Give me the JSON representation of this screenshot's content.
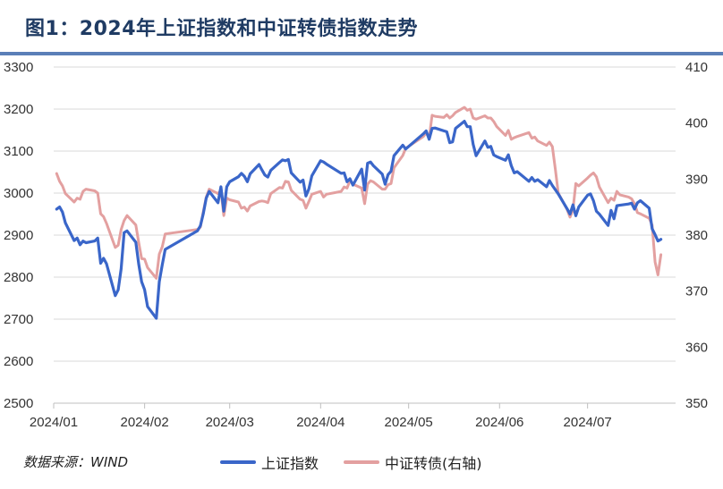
{
  "header": {
    "title": "图1：2024年上证指数和中证转债指数走势"
  },
  "footer": {
    "source": "数据来源：WIND"
  },
  "colors": {
    "primary": "#3a66c9",
    "secondary": "#e3a0a0",
    "overlap": "#6b4a86",
    "grid": "#d9d9d9"
  },
  "chart_data": {
    "type": "line",
    "title": "图1：2024年上证指数和中证转债指数走势",
    "grid": true,
    "legend": "bottom",
    "x_ticks": [
      "2024/01",
      "2024/02",
      "2024/03",
      "2024/04",
      "2024/05",
      "2024/06",
      "2024/07"
    ],
    "y_left": {
      "ticks": [
        "3300",
        "3200",
        "3100",
        "3000",
        "2900",
        "2800",
        "2700",
        "2600",
        "2500"
      ],
      "range": [
        2500,
        3300
      ]
    },
    "y_right": {
      "ticks": [
        "410",
        "400",
        "390",
        "380",
        "370",
        "360",
        "350"
      ],
      "range": [
        350,
        410
      ]
    },
    "x_range": [
      "2024-01-01",
      "2024-07-31"
    ],
    "series": [
      {
        "name": "上证指数",
        "axis": "left",
        "points": [
          [
            "2024-01-02",
            2962
          ],
          [
            "2024-01-03",
            2967
          ],
          [
            "2024-01-04",
            2955
          ],
          [
            "2024-01-05",
            2929
          ],
          [
            "2024-01-08",
            2887
          ],
          [
            "2024-01-09",
            2893
          ],
          [
            "2024-01-10",
            2877
          ],
          [
            "2024-01-11",
            2886
          ],
          [
            "2024-01-12",
            2882
          ],
          [
            "2024-01-15",
            2886
          ],
          [
            "2024-01-16",
            2893
          ],
          [
            "2024-01-17",
            2833
          ],
          [
            "2024-01-18",
            2845
          ],
          [
            "2024-01-19",
            2832
          ],
          [
            "2024-01-22",
            2756
          ],
          [
            "2024-01-23",
            2770
          ],
          [
            "2024-01-24",
            2820
          ],
          [
            "2024-01-25",
            2906
          ],
          [
            "2024-01-26",
            2910
          ],
          [
            "2024-01-29",
            2883
          ],
          [
            "2024-01-30",
            2830
          ],
          [
            "2024-01-31",
            2789
          ],
          [
            "2024-02-01",
            2770
          ],
          [
            "2024-02-02",
            2730
          ],
          [
            "2024-02-05",
            2702
          ],
          [
            "2024-02-06",
            2789
          ],
          [
            "2024-02-07",
            2829
          ],
          [
            "2024-02-08",
            2866
          ],
          [
            "2024-02-19",
            2910
          ],
          [
            "2024-02-20",
            2922
          ],
          [
            "2024-02-21",
            2951
          ],
          [
            "2024-02-22",
            2988
          ],
          [
            "2024-02-23",
            3004
          ],
          [
            "2024-02-26",
            2977
          ],
          [
            "2024-02-27",
            3015
          ],
          [
            "2024-02-28",
            2957
          ],
          [
            "2024-02-29",
            3015
          ],
          [
            "2024-03-01",
            3027
          ],
          [
            "2024-03-04",
            3039
          ],
          [
            "2024-03-05",
            3047
          ],
          [
            "2024-03-06",
            3040
          ],
          [
            "2024-03-07",
            3027
          ],
          [
            "2024-03-08",
            3046
          ],
          [
            "2024-03-11",
            3068
          ],
          [
            "2024-03-12",
            3055
          ],
          [
            "2024-03-13",
            3043
          ],
          [
            "2024-03-14",
            3038
          ],
          [
            "2024-03-15",
            3054
          ],
          [
            "2024-03-18",
            3073
          ],
          [
            "2024-03-19",
            3079
          ],
          [
            "2024-03-20",
            3077
          ],
          [
            "2024-03-21",
            3080
          ],
          [
            "2024-03-22",
            3048
          ],
          [
            "2024-03-25",
            3026
          ],
          [
            "2024-03-26",
            3031
          ],
          [
            "2024-03-27",
            2993
          ],
          [
            "2024-03-28",
            3010
          ],
          [
            "2024-03-29",
            3041
          ],
          [
            "2024-04-01",
            3077
          ],
          [
            "2024-04-02",
            3074
          ],
          [
            "2024-04-03",
            3069
          ],
          [
            "2024-04-08",
            3047
          ],
          [
            "2024-04-09",
            3048
          ],
          [
            "2024-04-10",
            3027
          ],
          [
            "2024-04-11",
            3034
          ],
          [
            "2024-04-12",
            3019
          ],
          [
            "2024-04-15",
            3057
          ],
          [
            "2024-04-16",
            3007
          ],
          [
            "2024-04-17",
            3071
          ],
          [
            "2024-04-18",
            3074
          ],
          [
            "2024-04-19",
            3065
          ],
          [
            "2024-04-22",
            3045
          ],
          [
            "2024-04-23",
            3021
          ],
          [
            "2024-04-24",
            3044
          ],
          [
            "2024-04-25",
            3052
          ],
          [
            "2024-04-26",
            3089
          ],
          [
            "2024-04-29",
            3114
          ],
          [
            "2024-04-30",
            3105
          ],
          [
            "2024-05-06",
            3141
          ],
          [
            "2024-05-07",
            3148
          ],
          [
            "2024-05-08",
            3128
          ],
          [
            "2024-05-09",
            3154
          ],
          [
            "2024-05-10",
            3155
          ],
          [
            "2024-05-13",
            3148
          ],
          [
            "2024-05-14",
            3146
          ],
          [
            "2024-05-15",
            3120
          ],
          [
            "2024-05-16",
            3122
          ],
          [
            "2024-05-17",
            3154
          ],
          [
            "2024-05-20",
            3171
          ],
          [
            "2024-05-21",
            3158
          ],
          [
            "2024-05-22",
            3158
          ],
          [
            "2024-05-23",
            3116
          ],
          [
            "2024-05-24",
            3089
          ],
          [
            "2024-05-27",
            3124
          ],
          [
            "2024-05-28",
            3109
          ],
          [
            "2024-05-29",
            3111
          ],
          [
            "2024-05-30",
            3091
          ],
          [
            "2024-05-31",
            3087
          ],
          [
            "2024-06-03",
            3078
          ],
          [
            "2024-06-04",
            3091
          ],
          [
            "2024-06-05",
            3065
          ],
          [
            "2024-06-06",
            3048
          ],
          [
            "2024-06-07",
            3051
          ],
          [
            "2024-06-11",
            3028
          ],
          [
            "2024-06-12",
            3037
          ],
          [
            "2024-06-13",
            3028
          ],
          [
            "2024-06-14",
            3032
          ],
          [
            "2024-06-17",
            3015
          ],
          [
            "2024-06-18",
            3030
          ],
          [
            "2024-06-19",
            3018
          ],
          [
            "2024-06-20",
            3008
          ],
          [
            "2024-06-21",
            2998
          ],
          [
            "2024-06-24",
            2963
          ],
          [
            "2024-06-25",
            2950
          ],
          [
            "2024-06-26",
            2972
          ],
          [
            "2024-06-27",
            2946
          ],
          [
            "2024-06-28",
            2967
          ],
          [
            "2024-07-01",
            2995
          ],
          [
            "2024-07-02",
            2998
          ],
          [
            "2024-07-03",
            2982
          ],
          [
            "2024-07-04",
            2957
          ],
          [
            "2024-07-05",
            2950
          ],
          [
            "2024-07-08",
            2923
          ],
          [
            "2024-07-09",
            2959
          ],
          [
            "2024-07-10",
            2939
          ],
          [
            "2024-07-11",
            2970
          ],
          [
            "2024-07-12",
            2971
          ],
          [
            "2024-07-15",
            2974
          ],
          [
            "2024-07-16",
            2976
          ],
          [
            "2024-07-17",
            2962
          ],
          [
            "2024-07-18",
            2977
          ],
          [
            "2024-07-19",
            2982
          ],
          [
            "2024-07-22",
            2964
          ],
          [
            "2024-07-23",
            2915
          ],
          [
            "2024-07-24",
            2901
          ],
          [
            "2024-07-25",
            2886
          ],
          [
            "2024-07-26",
            2890
          ]
        ]
      },
      {
        "name": "中证转债(右轴)",
        "axis": "right",
        "points": [
          [
            "2024-01-02",
            391.0
          ],
          [
            "2024-01-03",
            389.6
          ],
          [
            "2024-01-04",
            388.8
          ],
          [
            "2024-01-05",
            387.4
          ],
          [
            "2024-01-08",
            385.9
          ],
          [
            "2024-01-09",
            386.6
          ],
          [
            "2024-01-10",
            386.4
          ],
          [
            "2024-01-11",
            387.8
          ],
          [
            "2024-01-12",
            388.2
          ],
          [
            "2024-01-15",
            387.9
          ],
          [
            "2024-01-16",
            387.5
          ],
          [
            "2024-01-17",
            383.8
          ],
          [
            "2024-01-18",
            383.3
          ],
          [
            "2024-01-19",
            382.1
          ],
          [
            "2024-01-22",
            377.8
          ],
          [
            "2024-01-23",
            378.2
          ],
          [
            "2024-01-24",
            381.0
          ],
          [
            "2024-01-25",
            382.6
          ],
          [
            "2024-01-26",
            383.5
          ],
          [
            "2024-01-29",
            381.8
          ],
          [
            "2024-01-30",
            378.6
          ],
          [
            "2024-01-31",
            375.8
          ],
          [
            "2024-02-01",
            375.7
          ],
          [
            "2024-02-02",
            374.2
          ],
          [
            "2024-02-05",
            372.3
          ],
          [
            "2024-02-06",
            376.6
          ],
          [
            "2024-02-07",
            377.9
          ],
          [
            "2024-02-08",
            380.2
          ],
          [
            "2024-02-19",
            381.0
          ],
          [
            "2024-02-20",
            381.4
          ],
          [
            "2024-02-21",
            384.2
          ],
          [
            "2024-02-22",
            386.8
          ],
          [
            "2024-02-23",
            388.2
          ],
          [
            "2024-02-26",
            387.4
          ],
          [
            "2024-02-27",
            388.0
          ],
          [
            "2024-02-28",
            383.5
          ],
          [
            "2024-02-29",
            386.6
          ],
          [
            "2024-03-01",
            386.3
          ],
          [
            "2024-03-04",
            385.9
          ],
          [
            "2024-03-05",
            384.8
          ],
          [
            "2024-03-06",
            385.0
          ],
          [
            "2024-03-07",
            384.3
          ],
          [
            "2024-03-08",
            385.2
          ],
          [
            "2024-03-11",
            386.0
          ],
          [
            "2024-03-12",
            386.1
          ],
          [
            "2024-03-13",
            386.0
          ],
          [
            "2024-03-14",
            385.8
          ],
          [
            "2024-03-15",
            387.4
          ],
          [
            "2024-03-18",
            388.5
          ],
          [
            "2024-03-19",
            388.4
          ],
          [
            "2024-03-20",
            389.6
          ],
          [
            "2024-03-21",
            389.5
          ],
          [
            "2024-03-22",
            388.0
          ],
          [
            "2024-03-25",
            386.4
          ],
          [
            "2024-03-26",
            386.2
          ],
          [
            "2024-03-27",
            384.8
          ],
          [
            "2024-03-28",
            386.0
          ],
          [
            "2024-03-29",
            387.3
          ],
          [
            "2024-04-01",
            387.8
          ],
          [
            "2024-04-02",
            386.8
          ],
          [
            "2024-04-03",
            387.3
          ],
          [
            "2024-04-08",
            387.8
          ],
          [
            "2024-04-09",
            388.6
          ],
          [
            "2024-04-10",
            388.4
          ],
          [
            "2024-04-11",
            389.7
          ],
          [
            "2024-04-12",
            389.1
          ],
          [
            "2024-04-15",
            388.4
          ],
          [
            "2024-04-16",
            385.6
          ],
          [
            "2024-04-17",
            389.1
          ],
          [
            "2024-04-18",
            389.7
          ],
          [
            "2024-04-19",
            389.5
          ],
          [
            "2024-04-22",
            388.2
          ],
          [
            "2024-04-23",
            388.2
          ],
          [
            "2024-04-24",
            389.0
          ],
          [
            "2024-04-25",
            389.2
          ],
          [
            "2024-04-26",
            392.0
          ],
          [
            "2024-04-29",
            394.2
          ],
          [
            "2024-04-30",
            395.5
          ],
          [
            "2024-05-06",
            397.6
          ],
          [
            "2024-05-07",
            398.3
          ],
          [
            "2024-05-08",
            397.3
          ],
          [
            "2024-05-09",
            401.4
          ],
          [
            "2024-05-10",
            401.2
          ],
          [
            "2024-05-13",
            401.0
          ],
          [
            "2024-05-14",
            401.5
          ],
          [
            "2024-05-15",
            400.9
          ],
          [
            "2024-05-16",
            401.3
          ],
          [
            "2024-05-17",
            401.9
          ],
          [
            "2024-05-20",
            402.8
          ],
          [
            "2024-05-21",
            402.3
          ],
          [
            "2024-05-22",
            402.5
          ],
          [
            "2024-05-23",
            400.9
          ],
          [
            "2024-05-24",
            400.7
          ],
          [
            "2024-05-27",
            401.3
          ],
          [
            "2024-05-28",
            400.9
          ],
          [
            "2024-05-29",
            400.9
          ],
          [
            "2024-05-30",
            400.3
          ],
          [
            "2024-05-31",
            399.4
          ],
          [
            "2024-06-03",
            397.8
          ],
          [
            "2024-06-04",
            398.7
          ],
          [
            "2024-06-05",
            397.1
          ],
          [
            "2024-06-06",
            397.4
          ],
          [
            "2024-06-07",
            397.6
          ],
          [
            "2024-06-11",
            398.3
          ],
          [
            "2024-06-12",
            397.3
          ],
          [
            "2024-06-13",
            397.5
          ],
          [
            "2024-06-14",
            396.8
          ],
          [
            "2024-06-17",
            396.0
          ],
          [
            "2024-06-18",
            396.6
          ],
          [
            "2024-06-19",
            395.8
          ],
          [
            "2024-06-20",
            391.8
          ],
          [
            "2024-06-21",
            387.5
          ],
          [
            "2024-06-24",
            384.6
          ],
          [
            "2024-06-25",
            383.2
          ],
          [
            "2024-06-26",
            384.5
          ],
          [
            "2024-06-27",
            389.2
          ],
          [
            "2024-06-28",
            388.8
          ],
          [
            "2024-07-01",
            390.2
          ],
          [
            "2024-07-02",
            390.7
          ],
          [
            "2024-07-03",
            391.1
          ],
          [
            "2024-07-04",
            390.4
          ],
          [
            "2024-07-05",
            388.6
          ],
          [
            "2024-07-08",
            385.8
          ],
          [
            "2024-07-09",
            386.6
          ],
          [
            "2024-07-10",
            386.2
          ],
          [
            "2024-07-11",
            387.8
          ],
          [
            "2024-07-12",
            387.2
          ],
          [
            "2024-07-15",
            386.8
          ],
          [
            "2024-07-16",
            386.5
          ],
          [
            "2024-07-17",
            385.6
          ],
          [
            "2024-07-18",
            384.0
          ],
          [
            "2024-07-19",
            383.8
          ],
          [
            "2024-07-22",
            383.0
          ],
          [
            "2024-07-23",
            381.8
          ],
          [
            "2024-07-24",
            375.2
          ],
          [
            "2024-07-25",
            372.9
          ],
          [
            "2024-07-26",
            376.5
          ]
        ]
      }
    ]
  }
}
